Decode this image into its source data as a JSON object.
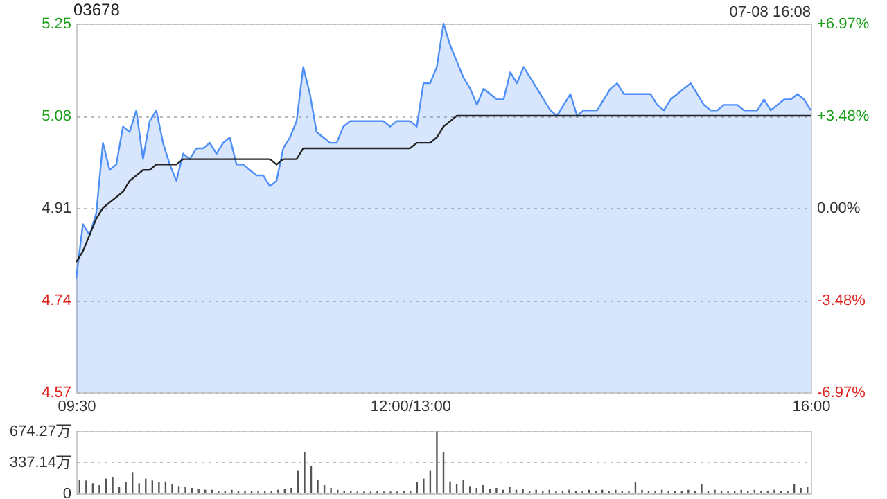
{
  "chart_data": [
    {
      "type": "line",
      "title": "03678",
      "annotations": [
        "07-08 16:08"
      ],
      "grid": "y",
      "categories": [
        "09:30",
        null,
        null,
        null,
        null,
        null,
        null,
        null,
        null,
        null,
        null,
        null,
        null,
        null,
        null,
        null,
        null,
        null,
        null,
        null,
        null,
        null,
        null,
        null,
        null,
        null,
        null,
        null,
        null,
        null,
        null,
        null,
        null,
        null,
        null,
        null,
        null,
        null,
        null,
        null,
        null,
        null,
        null,
        null,
        null,
        null,
        null,
        null,
        null,
        null,
        "12:00/13:00",
        null,
        null,
        null,
        null,
        null,
        null,
        null,
        null,
        null,
        null,
        null,
        null,
        null,
        null,
        null,
        null,
        null,
        null,
        null,
        null,
        null,
        null,
        null,
        null,
        null,
        null,
        null,
        null,
        null,
        null,
        null,
        null,
        null,
        null,
        null,
        null,
        null,
        null,
        null,
        null,
        null,
        null,
        null,
        null,
        null,
        null,
        null,
        null,
        null,
        null,
        null,
        null,
        null,
        null,
        null,
        null,
        null,
        null,
        null,
        "16:00"
      ],
      "ylim": [
        4.57,
        5.25
      ],
      "yticks": [
        4.57,
        4.74,
        4.91,
        5.08,
        5.25
      ],
      "y2lim": [
        -6.97,
        6.97
      ],
      "y2ticks": [
        {
          "value": -6.97,
          "label": "-6.97%"
        },
        {
          "value": -3.48,
          "label": "-3.48%"
        },
        {
          "value": 0,
          "label": "0.00%"
        },
        {
          "value": 3.48,
          "label": "+3.48%"
        },
        {
          "value": 6.97,
          "label": "+6.97%"
        }
      ],
      "series": [
        {
          "type": "area",
          "color": "#4e8ef7",
          "values": [
            4.78,
            4.88,
            4.86,
            4.9,
            5.03,
            4.98,
            4.99,
            5.06,
            5.05,
            5.09,
            5.0,
            5.07,
            5.09,
            5.03,
            4.99,
            4.96,
            5.01,
            5.0,
            5.02,
            5.02,
            5.03,
            5.01,
            5.03,
            5.04,
            4.99,
            4.99,
            4.98,
            4.97,
            4.97,
            4.95,
            4.96,
            5.02,
            5.04,
            5.07,
            5.17,
            5.12,
            5.05,
            5.04,
            5.03,
            5.03,
            5.06,
            5.07,
            5.07,
            5.07,
            5.07,
            5.07,
            5.07,
            5.06,
            5.07,
            5.07,
            5.07,
            5.06,
            5.14,
            5.14,
            5.17,
            5.25,
            5.21,
            5.18,
            5.15,
            5.13,
            5.1,
            5.13,
            5.12,
            5.11,
            5.11,
            5.16,
            5.14,
            5.17,
            5.15,
            5.13,
            5.11,
            5.09,
            5.08,
            5.1,
            5.12,
            5.08,
            5.09,
            5.09,
            5.09,
            5.11,
            5.13,
            5.14,
            5.12,
            5.12,
            5.12,
            5.12,
            5.12,
            5.1,
            5.09,
            5.11,
            5.12,
            5.13,
            5.14,
            5.12,
            5.1,
            5.09,
            5.09,
            5.1,
            5.1,
            5.1,
            5.09,
            5.09,
            5.09,
            5.11,
            5.09,
            5.1,
            5.11,
            5.11,
            5.12,
            5.11,
            5.09
          ]
        },
        {
          "type": "line",
          "color": "#222222",
          "values": [
            4.81,
            4.83,
            4.86,
            4.89,
            4.91,
            4.92,
            4.93,
            4.94,
            4.96,
            4.97,
            4.98,
            4.98,
            4.99,
            4.99,
            4.99,
            4.99,
            5.0,
            5.0,
            5.0,
            5.0,
            5.0,
            5.0,
            5.0,
            5.0,
            5.0,
            5.0,
            5.0,
            5.0,
            5.0,
            5.0,
            4.99,
            5.0,
            5.0,
            5.0,
            5.02,
            5.02,
            5.02,
            5.02,
            5.02,
            5.02,
            5.02,
            5.02,
            5.02,
            5.02,
            5.02,
            5.02,
            5.02,
            5.02,
            5.02,
            5.02,
            5.02,
            5.03,
            5.03,
            5.03,
            5.04,
            5.06,
            5.07,
            5.08,
            5.08,
            5.08,
            5.08,
            5.08,
            5.08,
            5.08,
            5.08,
            5.08,
            5.08,
            5.08,
            5.08,
            5.08,
            5.08,
            5.08,
            5.08,
            5.08,
            5.08,
            5.08,
            5.08,
            5.08,
            5.08,
            5.08,
            5.08,
            5.08,
            5.08,
            5.08,
            5.08,
            5.08,
            5.08,
            5.08,
            5.08,
            5.08,
            5.08,
            5.08,
            5.08,
            5.08,
            5.08,
            5.08,
            5.08,
            5.08,
            5.08,
            5.08,
            5.08,
            5.08,
            5.08,
            5.08,
            5.08,
            5.08,
            5.08,
            5.08,
            5.08,
            5.08,
            5.08
          ]
        }
      ]
    },
    {
      "type": "bar",
      "grid": "y",
      "tick_labels": "y",
      "color": "#555555",
      "categories": [
        null,
        null,
        null,
        null,
        null,
        null,
        null,
        null,
        null,
        null,
        null,
        null,
        null,
        null,
        null,
        null,
        null,
        null,
        null,
        null,
        null,
        null,
        null,
        null,
        null,
        null,
        null,
        null,
        null,
        null,
        null,
        null,
        null,
        null,
        null,
        null,
        null,
        null,
        null,
        null,
        null,
        null,
        null,
        null,
        null,
        null,
        null,
        null,
        null,
        null,
        null,
        null,
        null,
        null,
        null,
        null,
        null,
        null,
        null,
        null,
        null,
        null,
        null,
        null,
        null,
        null,
        null,
        null,
        null,
        null,
        null,
        null,
        null,
        null,
        null,
        null,
        null,
        null,
        null,
        null,
        null,
        null,
        null,
        null,
        null,
        null,
        null,
        null,
        null,
        null,
        null,
        null,
        null,
        null,
        null,
        null,
        null,
        null,
        null,
        null,
        null,
        null,
        null,
        null,
        null,
        null,
        null,
        null,
        null,
        null,
        null
      ],
      "ylim": [
        0,
        674.27
      ],
      "yticks": [
        0,
        {
          "value": 337.14,
          "label": "337.14万"
        },
        {
          "value": 674.27,
          "label": "674.27万"
        }
      ],
      "values": [
        150,
        140,
        110,
        90,
        160,
        180,
        70,
        120,
        230,
        110,
        160,
        140,
        120,
        130,
        100,
        80,
        70,
        60,
        50,
        40,
        40,
        30,
        30,
        40,
        30,
        30,
        30,
        30,
        30,
        30,
        40,
        50,
        60,
        250,
        450,
        300,
        150,
        90,
        60,
        40,
        30,
        30,
        20,
        20,
        20,
        30,
        20,
        20,
        20,
        30,
        30,
        120,
        160,
        250,
        670,
        450,
        130,
        100,
        150,
        80,
        60,
        90,
        50,
        60,
        40,
        70,
        40,
        50,
        30,
        40,
        30,
        40,
        30,
        30,
        40,
        30,
        30,
        40,
        30,
        40,
        30,
        40,
        30,
        30,
        120,
        40,
        30,
        30,
        40,
        30,
        30,
        30,
        40,
        30,
        100,
        30,
        40,
        30,
        30,
        30,
        40,
        30,
        40,
        30,
        30,
        40,
        30,
        30,
        100,
        60,
        70
      ]
    }
  ]
}
